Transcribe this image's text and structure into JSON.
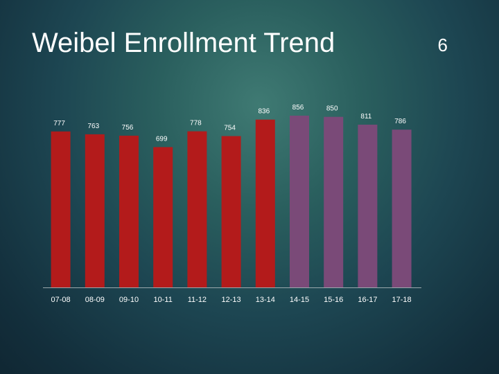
{
  "slide": {
    "title": "Weibel Enrollment Trend",
    "page_number": "6"
  },
  "colors": {
    "red": "#b31b1b",
    "purple": "#7a4a78",
    "axis": "#9aa9ad"
  },
  "chart_data": {
    "type": "bar",
    "title": "",
    "xlabel": "",
    "ylabel": "",
    "categories": [
      "07-08",
      "08-09",
      "09-10",
      "10-11",
      "11-12",
      "12-13",
      "13-14",
      "14-15",
      "15-16",
      "16-17",
      "17-18"
    ],
    "values": [
      777,
      763,
      756,
      699,
      778,
      754,
      836,
      856,
      850,
      811,
      786
    ],
    "bar_colors": [
      "#b31b1b",
      "#b31b1b",
      "#b31b1b",
      "#b31b1b",
      "#b31b1b",
      "#b31b1b",
      "#b31b1b",
      "#7a4a78",
      "#7a4a78",
      "#7a4a78",
      "#7a4a78"
    ],
    "ylim": [
      0,
      880
    ],
    "grid": false,
    "legend": "none"
  }
}
